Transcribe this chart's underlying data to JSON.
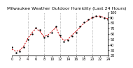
{
  "title": "Milwaukee Weather Outdoor Humidity (Last 24 Hours)",
  "x_values": [
    0,
    1,
    2,
    3,
    4,
    5,
    6,
    7,
    8,
    9,
    10,
    11,
    12,
    13,
    14,
    15,
    16,
    17,
    18,
    19,
    20,
    21,
    22,
    23,
    24
  ],
  "y_values": [
    32,
    28,
    30,
    38,
    52,
    62,
    70,
    65,
    55,
    58,
    65,
    72,
    55,
    48,
    50,
    58,
    65,
    72,
    80,
    85,
    90,
    92,
    93,
    90,
    88
  ],
  "y_values2": [
    35,
    26,
    28,
    36,
    50,
    60,
    72,
    67,
    53,
    56,
    63,
    74,
    57,
    46,
    48,
    56,
    63,
    74,
    82,
    87,
    91,
    93,
    92,
    89,
    87
  ],
  "ylim": [
    20,
    100
  ],
  "xlim": [
    0,
    24
  ],
  "bg_color": "#ffffff",
  "line_color": "#cc0000",
  "dot_color": "#000000",
  "grid_color": "#888888",
  "yticks": [
    20,
    30,
    40,
    50,
    60,
    70,
    80,
    90,
    100
  ],
  "xtick_positions": [
    0,
    2,
    4,
    6,
    8,
    10,
    12,
    14,
    16,
    18,
    20,
    22,
    24
  ],
  "vgrid_positions": [
    4,
    8,
    12,
    16,
    20
  ],
  "title_fontsize": 4.5,
  "tick_fontsize": 3.5
}
